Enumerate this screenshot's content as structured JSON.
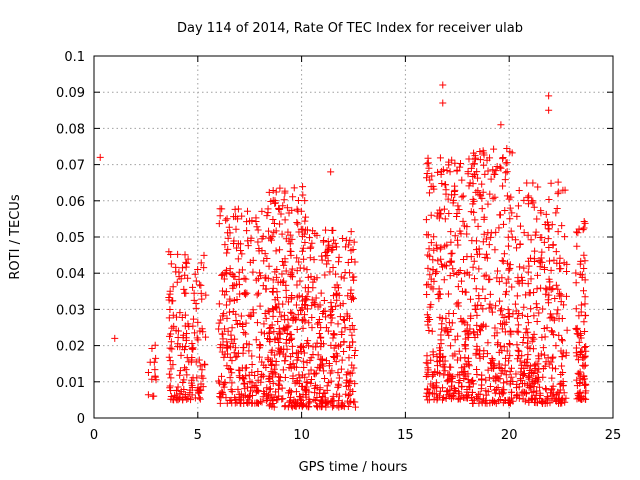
{
  "chart_data": {
    "type": "scatter",
    "title": "Day 114 of 2014, Rate Of TEC Index for receiver ulab",
    "xlabel": "GPS time / hours",
    "ylabel": "ROTI / TECUs",
    "xlim": [
      0,
      25
    ],
    "ylim": [
      0,
      0.1
    ],
    "xticks": [
      0,
      5,
      10,
      15,
      20,
      25
    ],
    "yticks": [
      0,
      0.01,
      0.02,
      0.03,
      0.04,
      0.05,
      0.06,
      0.07,
      0.08,
      0.09,
      0.1
    ],
    "xtick_labels": [
      "0",
      "5",
      "10",
      "15",
      "20",
      "25"
    ],
    "ytick_labels": [
      "0",
      "0.01",
      "0.02",
      "0.03",
      "0.04",
      "0.05",
      "0.06",
      "0.07",
      "0.08",
      "0.09",
      "0.1"
    ],
    "grid": true,
    "marker": "+",
    "color": "#ff0000",
    "notable_points": [
      {
        "x": 0.3,
        "y": 0.072
      },
      {
        "x": 1.0,
        "y": 0.022
      },
      {
        "x": 11.4,
        "y": 0.068
      },
      {
        "x": 16.8,
        "y": 0.092
      },
      {
        "x": 16.8,
        "y": 0.087
      },
      {
        "x": 19.6,
        "y": 0.081
      },
      {
        "x": 21.9,
        "y": 0.089
      },
      {
        "x": 21.9,
        "y": 0.085
      }
    ],
    "clusters": [
      {
        "x_range": [
          2.6,
          3.0
        ],
        "y_range": [
          0.006,
          0.036
        ],
        "density": 14
      },
      {
        "x_range": [
          3.6,
          5.4
        ],
        "y_range": [
          0.005,
          0.046
        ],
        "density": 170
      },
      {
        "x_range": [
          6.0,
          8.2
        ],
        "y_range": [
          0.004,
          0.058
        ],
        "density": 260
      },
      {
        "x_range": [
          8.2,
          10.2
        ],
        "y_range": [
          0.003,
          0.064
        ],
        "density": 340
      },
      {
        "x_range": [
          10.2,
          12.6
        ],
        "y_range": [
          0.003,
          0.052
        ],
        "density": 300
      },
      {
        "x_range": [
          16.0,
          18.0
        ],
        "y_range": [
          0.005,
          0.072
        ],
        "density": 300
      },
      {
        "x_range": [
          18.0,
          20.2
        ],
        "y_range": [
          0.004,
          0.075
        ],
        "density": 320
      },
      {
        "x_range": [
          20.3,
          22.8
        ],
        "y_range": [
          0.004,
          0.066
        ],
        "density": 330
      },
      {
        "x_range": [
          23.2,
          23.7
        ],
        "y_range": [
          0.005,
          0.055
        ],
        "density": 90
      }
    ]
  }
}
